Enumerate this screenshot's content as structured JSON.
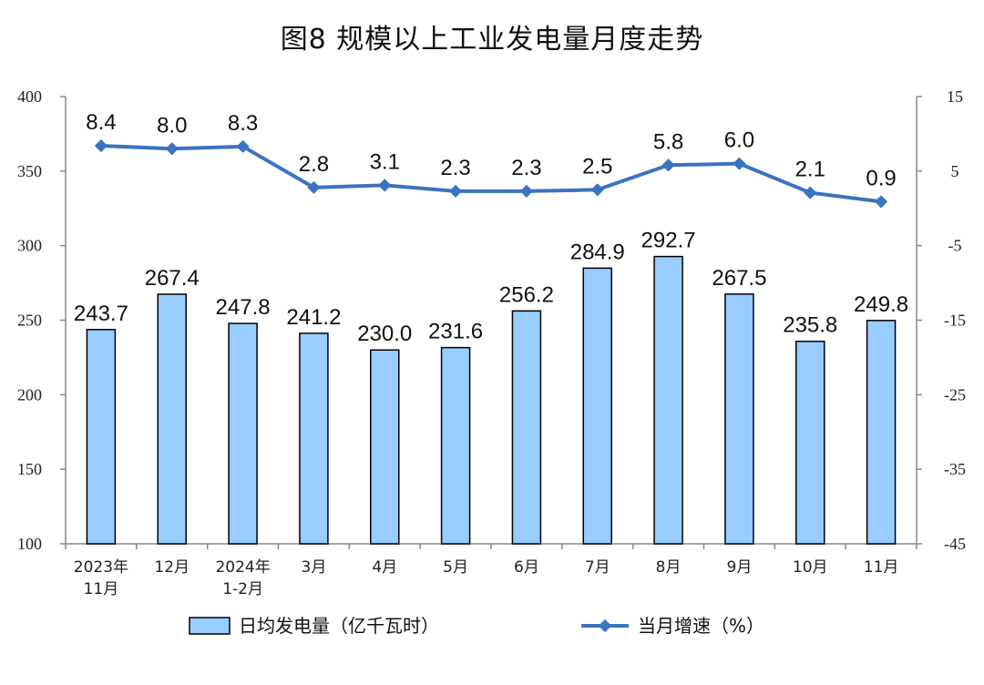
{
  "chart_data": {
    "type": "bar",
    "title": "图8  规模以上工业发电量月度走势",
    "categories": [
      [
        "2023年",
        "11月"
      ],
      [
        "12月"
      ],
      [
        "2024年",
        "1-2月"
      ],
      [
        "3月"
      ],
      [
        "4月"
      ],
      [
        "5月"
      ],
      [
        "6月"
      ],
      [
        "7月"
      ],
      [
        "8月"
      ],
      [
        "9月"
      ],
      [
        "10月"
      ],
      [
        "11月"
      ]
    ],
    "series": [
      {
        "name": "日均发电量（亿千瓦时）",
        "type": "bar",
        "axis": "left",
        "color": "#99CCFF",
        "values": [
          243.7,
          267.4,
          247.8,
          241.2,
          230.0,
          231.6,
          256.2,
          284.9,
          292.7,
          267.5,
          235.8,
          249.8
        ],
        "labels": [
          "243.7",
          "267.4",
          "247.8",
          "241.2",
          "230.0",
          "231.6",
          "256.2",
          "284.9",
          "292.7",
          "267.5",
          "235.8",
          "249.8"
        ]
      },
      {
        "name": "当月增速（%）",
        "type": "line",
        "axis": "right",
        "color": "#3B73C0",
        "values": [
          8.4,
          8.0,
          8.3,
          2.8,
          3.1,
          2.3,
          2.3,
          2.5,
          5.8,
          6.0,
          2.1,
          0.9
        ],
        "labels": [
          "8.4",
          "8.0",
          "8.3",
          "2.8",
          "3.1",
          "2.3",
          "2.3",
          "2.5",
          "5.8",
          "6.0",
          "2.1",
          "0.9"
        ]
      }
    ],
    "y_left": {
      "min": 100,
      "max": 400,
      "ticks": [
        "400",
        "350",
        "300",
        "250",
        "200",
        "150",
        "100"
      ]
    },
    "y_right": {
      "min": -45,
      "max": 15,
      "ticks": [
        "15",
        "5",
        "-5",
        "-15",
        "-25",
        "-35",
        "-45"
      ]
    },
    "grid": false,
    "legend": "bottom"
  }
}
